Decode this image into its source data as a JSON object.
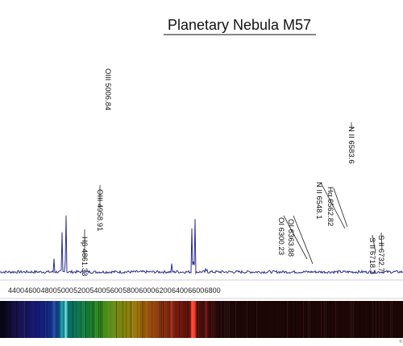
{
  "chart_data": {
    "type": "line",
    "title": "Planetary Nebula  M57",
    "xlabel": "",
    "ylabel": "",
    "xlim": [
      4250,
      6900
    ],
    "ylim": [
      0,
      100
    ],
    "grid": false,
    "legend": "none",
    "x_ticks": [
      4400,
      4600,
      4800,
      5000,
      5200,
      5400,
      5600,
      5800,
      6000,
      6200,
      6400,
      6600,
      6800
    ],
    "series": [
      {
        "color": "#2c2f8c",
        "baseline": 2.5,
        "peaks": [
          {
            "x": 4861.33,
            "y": 10,
            "w": 7
          },
          {
            "x": 4958.91,
            "y": 33,
            "w": 7
          },
          {
            "x": 5006.84,
            "y": 95,
            "w": 7
          },
          {
            "x": 6300.23,
            "y": 6,
            "w": 8
          },
          {
            "x": 6363.88,
            "y": 3.5,
            "w": 8
          },
          {
            "x": 6548.1,
            "y": 22,
            "w": 7
          },
          {
            "x": 6562.82,
            "y": 22,
            "w": 8
          },
          {
            "x": 6583.6,
            "y": 68,
            "w": 7
          },
          {
            "x": 6718.3,
            "y": 4,
            "w": 8
          },
          {
            "x": 6732.7,
            "y": 4,
            "w": 8
          }
        ]
      }
    ],
    "annotations": [
      {
        "text": "Hβ 4861.33",
        "x": 4861.33
      },
      {
        "text": "OIII 4958.91",
        "x": 4958.91
      },
      {
        "text": "OIII 5006.84",
        "x": 5006.84
      },
      {
        "text": "OI 6300.23",
        "x": 6300.23
      },
      {
        "text": "OI 6363.88",
        "x": 6363.88
      },
      {
        "text": "N II 6548.1",
        "x": 6548.1
      },
      {
        "text": "Hα 6562.82",
        "x": 6562.82
      },
      {
        "text": "N II 6583.6",
        "x": 6583.6
      },
      {
        "text": "S II 6718.3",
        "x": 6718.3
      },
      {
        "text": "S II 6732.7",
        "x": 6732.7
      }
    ],
    "spectrum_strip": {
      "stops": [
        {
          "x": 4250,
          "color": "#07071a"
        },
        {
          "x": 4350,
          "color": "#14103a"
        },
        {
          "x": 4500,
          "color": "#1c1660"
        },
        {
          "x": 4650,
          "color": "#161a78"
        },
        {
          "x": 4800,
          "color": "#0f2a80"
        },
        {
          "x": 4900,
          "color": "#0d3f7a"
        },
        {
          "x": 5000,
          "color": "#0d6770"
        },
        {
          "x": 5100,
          "color": "#0c7058"
        },
        {
          "x": 5250,
          "color": "#15803a"
        },
        {
          "x": 5450,
          "color": "#3a8c1c"
        },
        {
          "x": 5650,
          "color": "#7a8c10"
        },
        {
          "x": 5850,
          "color": "#9a7a0c"
        },
        {
          "x": 6000,
          "color": "#9a560c"
        },
        {
          "x": 6200,
          "color": "#8a3010"
        },
        {
          "x": 6400,
          "color": "#701810"
        },
        {
          "x": 6600,
          "color": "#50100c"
        },
        {
          "x": 6800,
          "color": "#300808"
        },
        {
          "x": 6900,
          "color": "#1e0606"
        }
      ],
      "bright_lines": [
        {
          "x": 4861.33,
          "color": "#4d5bd6",
          "strength": 0.55
        },
        {
          "x": 4958.91,
          "color": "#25b8c4",
          "strength": 0.8
        },
        {
          "x": 5006.84,
          "color": "#6ff2ee",
          "strength": 1.0
        },
        {
          "x": 6300.23,
          "color": "#e0502a",
          "strength": 0.4
        },
        {
          "x": 6548.1,
          "color": "#ff3a2a",
          "strength": 0.8
        },
        {
          "x": 6562.82,
          "color": "#ff5a40",
          "strength": 1.0
        },
        {
          "x": 6583.6,
          "color": "#ff3a2a",
          "strength": 0.9
        },
        {
          "x": 6725,
          "color": "#c02418",
          "strength": 0.4
        }
      ]
    }
  },
  "corner_mark": "©"
}
